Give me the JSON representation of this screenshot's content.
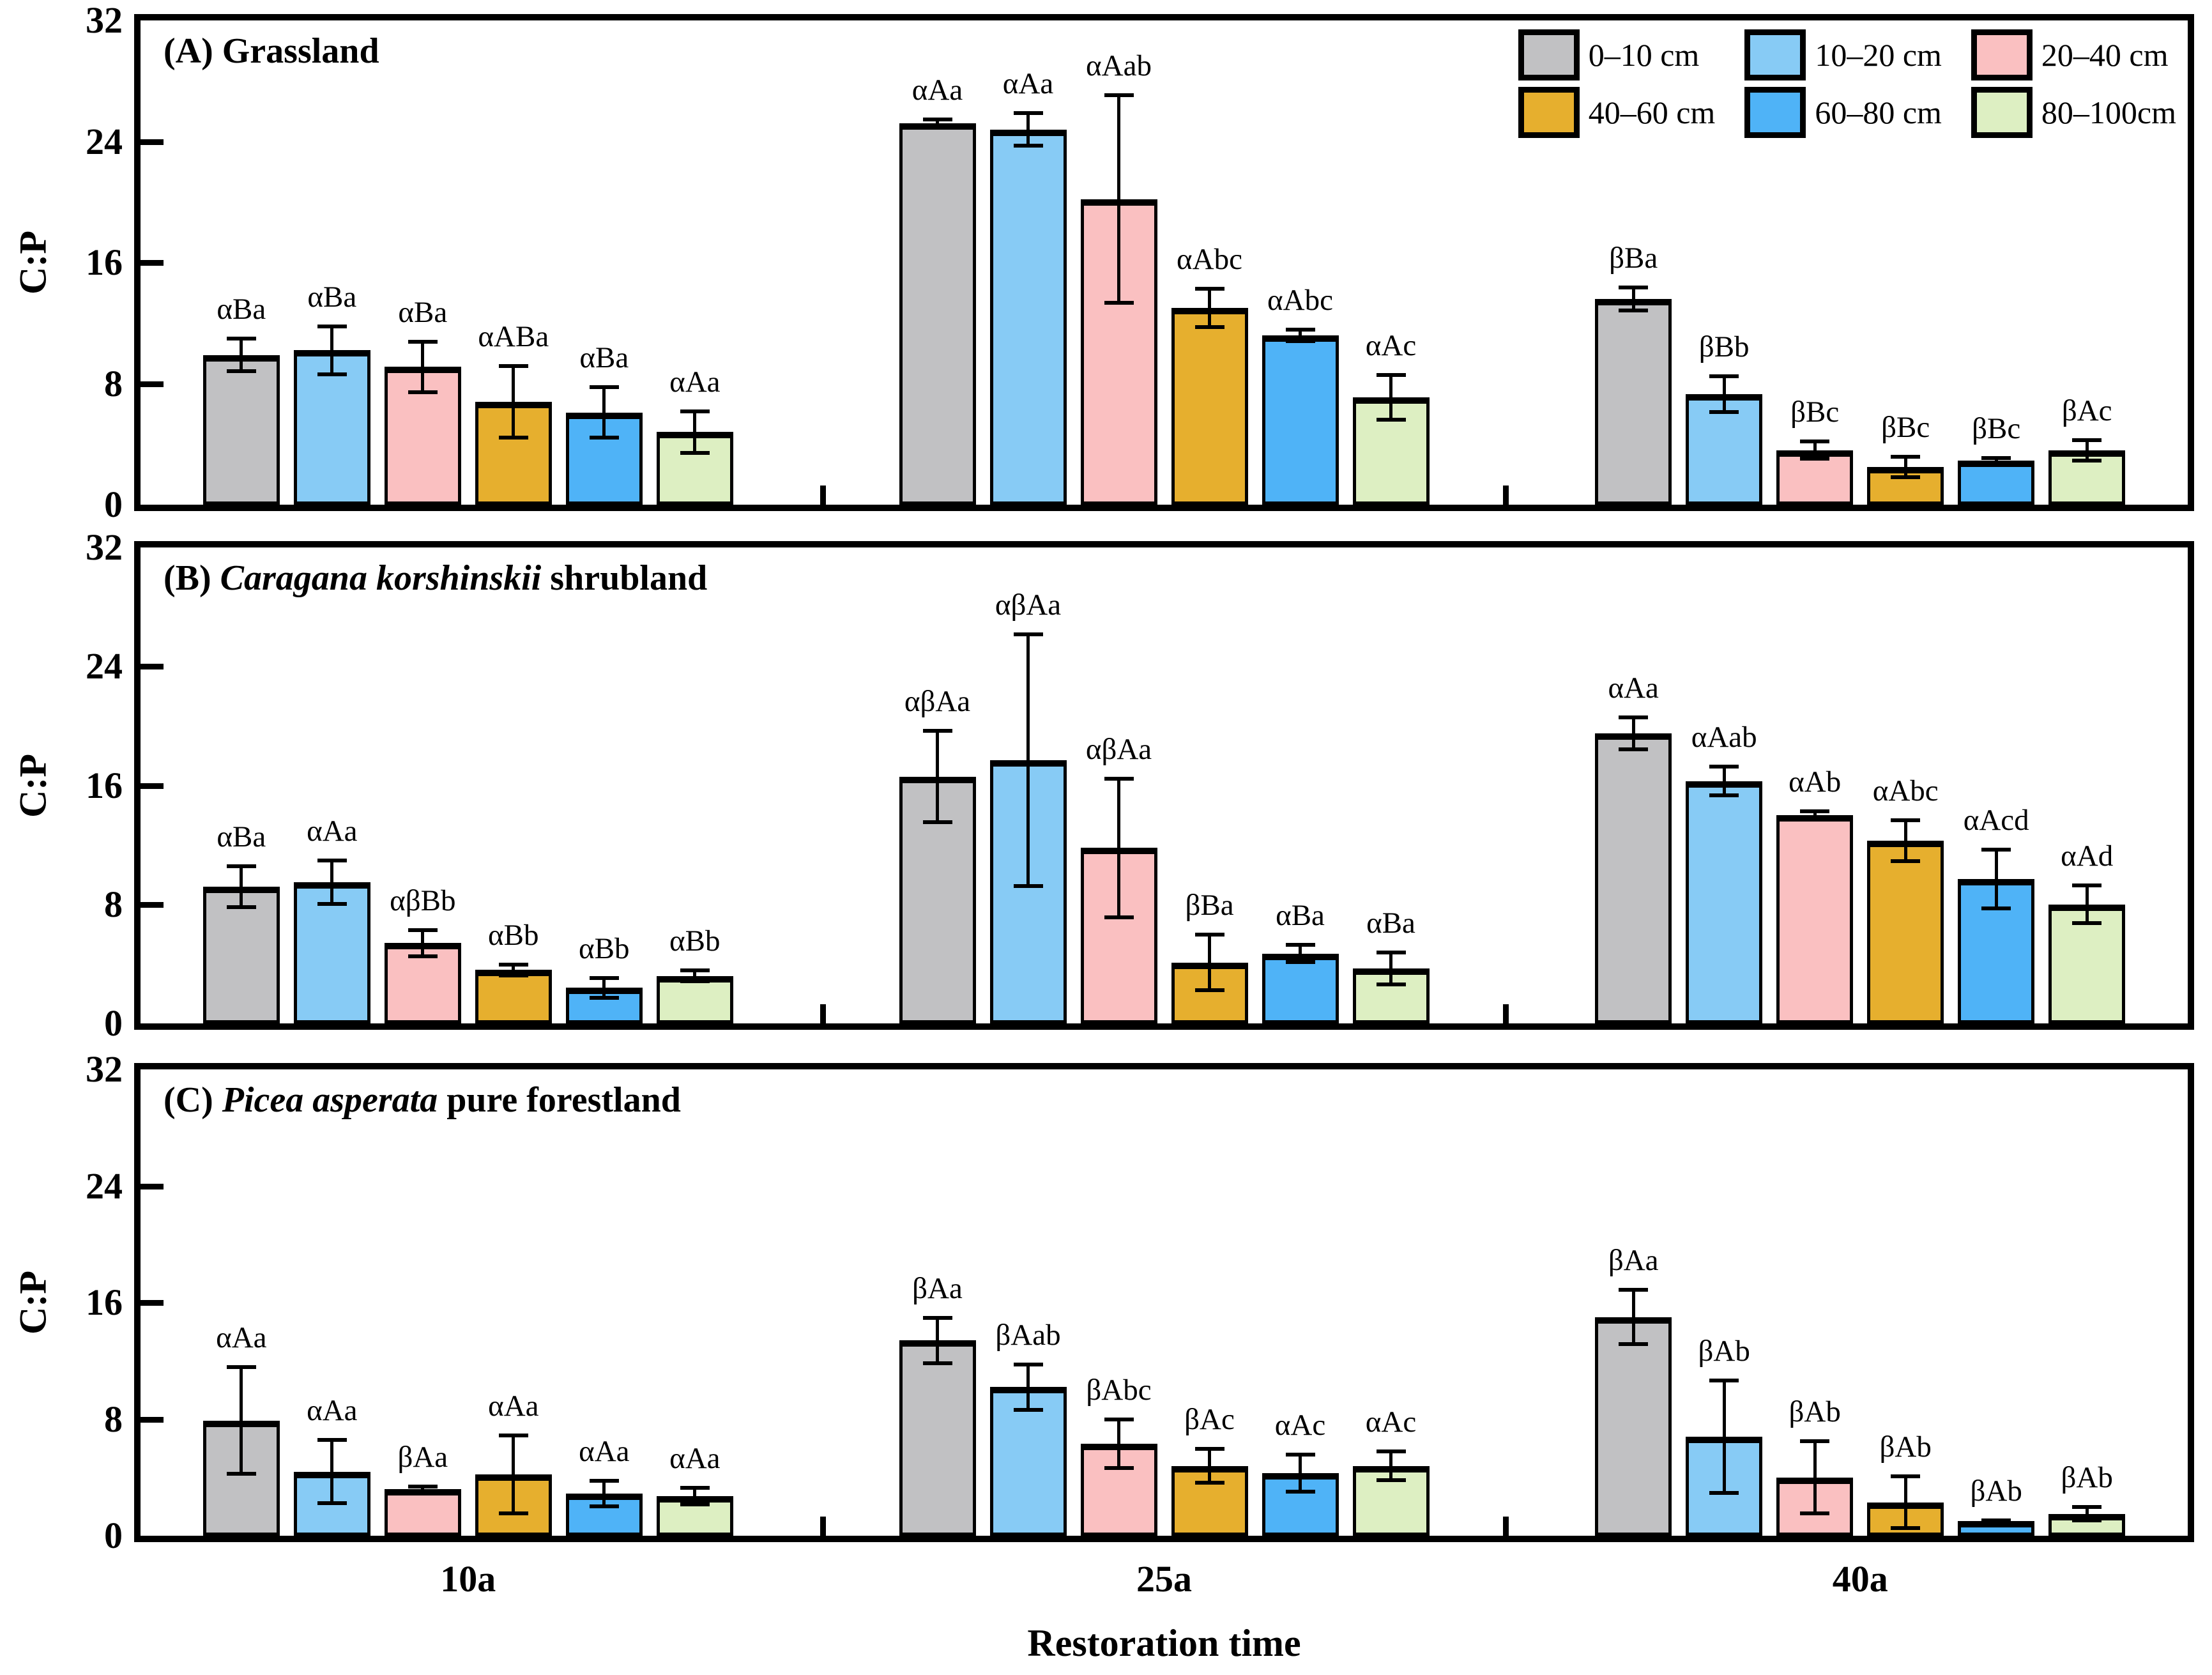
{
  "figure": {
    "x_tick_labels": [
      "10a",
      "25a",
      "40a"
    ],
    "x_axis_title": "Restoration time",
    "y_axis_title": "C:P"
  },
  "chart_data": {
    "type": "bar",
    "categories": [
      "10a",
      "25a",
      "40a"
    ],
    "xlabel": "Restoration time",
    "ylabel": "C:P",
    "ylim": [
      0,
      32
    ],
    "y_ticks": [
      0,
      8,
      16,
      24,
      32
    ],
    "grid": false,
    "legend_position": "top-right inside panel A",
    "error_bars": true,
    "panels": [
      {
        "id": "A",
        "title": {
          "prefix": "(A)",
          "italic": "",
          "suffix": "Grassland"
        },
        "series": [
          {
            "name": "0–10 cm",
            "color": "#c1c1c3",
            "values": [
              9.9,
              25.2,
              13.6
            ],
            "errors": [
              1.2,
              0.4,
              0.9
            ],
            "sig_labels": [
              "αBa",
              "αAa",
              "βBa"
            ]
          },
          {
            "name": "10–20 cm",
            "color": "#87cbf5",
            "values": [
              10.2,
              24.8,
              7.3
            ],
            "errors": [
              1.7,
              1.2,
              1.3
            ],
            "sig_labels": [
              "αBa",
              "αAa",
              "βBb"
            ]
          },
          {
            "name": "20–40 cm",
            "color": "#fac0c1",
            "values": [
              9.1,
              20.2,
              3.6
            ],
            "errors": [
              1.8,
              7.0,
              0.7
            ],
            "sig_labels": [
              "αBa",
              "αAab",
              "βBc"
            ]
          },
          {
            "name": "40–60 cm",
            "color": "#e6af2e",
            "values": [
              6.8,
              13.0,
              2.5
            ],
            "errors": [
              2.5,
              1.4,
              0.8
            ],
            "sig_labels": [
              "αABa",
              "αAbc",
              "βBc"
            ]
          },
          {
            "name": "60–80 cm",
            "color": "#4fb3f7",
            "values": [
              6.1,
              11.2,
              2.9
            ],
            "errors": [
              1.8,
              0.5,
              0.3
            ],
            "sig_labels": [
              "αBa",
              "αAbc",
              "βBc"
            ]
          },
          {
            "name": "80–100cm",
            "color": "#ddefc2",
            "values": [
              4.8,
              7.1,
              3.6
            ],
            "errors": [
              1.5,
              1.6,
              0.8
            ],
            "sig_labels": [
              "αAa",
              "αAc",
              "βAc"
            ]
          }
        ]
      },
      {
        "id": "B",
        "title": {
          "prefix": "(B)",
          "italic": "Caragana korshinskii",
          "suffix": "shrubland"
        },
        "series": [
          {
            "name": "0–10 cm",
            "color": "#c1c1c3",
            "values": [
              9.2,
              16.6,
              19.5
            ],
            "errors": [
              1.5,
              3.2,
              1.2
            ],
            "sig_labels": [
              "αBa",
              "αβAa",
              "αAa"
            ]
          },
          {
            "name": "10–20 cm",
            "color": "#87cbf5",
            "values": [
              9.5,
              17.7,
              16.3
            ],
            "errors": [
              1.6,
              8.6,
              1.1
            ],
            "sig_labels": [
              "αAa",
              "αβAa",
              "αAab"
            ]
          },
          {
            "name": "20–40 cm",
            "color": "#fac0c1",
            "values": [
              5.4,
              11.8,
              14.0
            ],
            "errors": [
              1.0,
              4.8,
              0.4
            ],
            "sig_labels": [
              "αβBb",
              "αβAa",
              "αAb"
            ]
          },
          {
            "name": "40–60 cm",
            "color": "#e6af2e",
            "values": [
              3.6,
              4.1,
              12.3
            ],
            "errors": [
              0.5,
              2.0,
              1.5
            ],
            "sig_labels": [
              "αBb",
              "βBa",
              "αAbc"
            ]
          },
          {
            "name": "60–80 cm",
            "color": "#4fb3f7",
            "values": [
              2.4,
              4.7,
              9.7
            ],
            "errors": [
              0.8,
              0.7,
              2.1
            ],
            "sig_labels": [
              "αBb",
              "αBa",
              "αAcd"
            ]
          },
          {
            "name": "80–100cm",
            "color": "#ddefc2",
            "values": [
              3.2,
              3.7,
              8.0
            ],
            "errors": [
              0.5,
              1.2,
              1.4
            ],
            "sig_labels": [
              "αBb",
              "αBa",
              "αAd"
            ]
          }
        ]
      },
      {
        "id": "C",
        "title": {
          "prefix": "(C)",
          "italic": "Picea asperata",
          "suffix": "pure forestland"
        },
        "series": [
          {
            "name": "0–10 cm",
            "color": "#c1c1c3",
            "values": [
              7.9,
              13.4,
              15.0
            ],
            "errors": [
              3.8,
              1.7,
              2.0
            ],
            "sig_labels": [
              "αAa",
              "βAa",
              "βAa"
            ]
          },
          {
            "name": "10–20 cm",
            "color": "#87cbf5",
            "values": [
              4.4,
              10.2,
              6.8
            ],
            "errors": [
              2.3,
              1.7,
              4.0
            ],
            "sig_labels": [
              "αAa",
              "βAab",
              "βAb"
            ]
          },
          {
            "name": "20–40 cm",
            "color": "#fac0c1",
            "values": [
              3.2,
              6.3,
              4.0
            ],
            "errors": [
              0.3,
              1.8,
              2.6
            ],
            "sig_labels": [
              "βAa",
              "βAbc",
              "βAb"
            ]
          },
          {
            "name": "40–60 cm",
            "color": "#e6af2e",
            "values": [
              4.2,
              4.8,
              2.3
            ],
            "errors": [
              2.8,
              1.3,
              1.9
            ],
            "sig_labels": [
              "αAa",
              "βAc",
              "βAb"
            ]
          },
          {
            "name": "60–80 cm",
            "color": "#4fb3f7",
            "values": [
              2.9,
              4.3,
              1.0
            ],
            "errors": [
              1.0,
              1.4,
              0.2
            ],
            "sig_labels": [
              "αAa",
              "αAc",
              "βAb"
            ]
          },
          {
            "name": "80–100cm",
            "color": "#ddefc2",
            "values": [
              2.7,
              4.8,
              1.5
            ],
            "errors": [
              0.7,
              1.1,
              0.6
            ],
            "sig_labels": [
              "αAa",
              "αAc",
              "βAb"
            ]
          }
        ]
      }
    ]
  }
}
